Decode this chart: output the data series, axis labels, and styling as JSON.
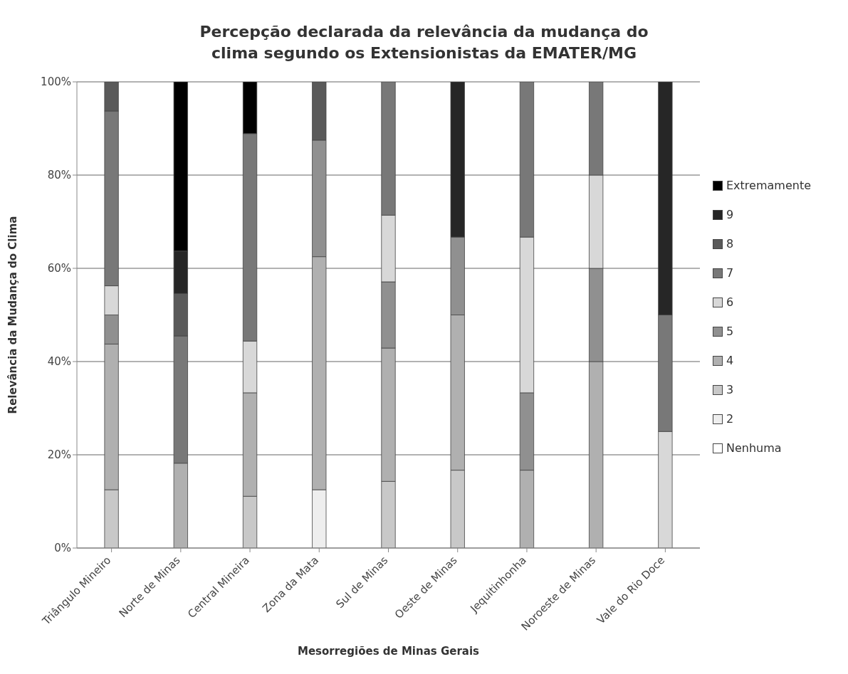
{
  "chart_data": {
    "type": "bar",
    "stacked": true,
    "title": "Percepção declarada da relevância da mudança do clima segundo os Extensionistas da EMATER/MG",
    "xlabel": "Mesorregiões de Minas Gerais",
    "ylabel": "Relevância da Mudança do Clima",
    "categories": [
      "Triângulo Mineiro",
      "Norte de Minas",
      "Central Mineira",
      "Zona da Mata",
      "Sul de Minas",
      "Oeste de Minas",
      "Jequitinhonha",
      "Noroeste de Minas",
      "Vale do Rio Doce"
    ],
    "ylim": [
      0,
      100
    ],
    "yticks": [
      {
        "value": 0,
        "label": "0%"
      },
      {
        "value": 20,
        "label": "20%"
      },
      {
        "value": 40,
        "label": "40%"
      },
      {
        "value": 60,
        "label": "60%"
      },
      {
        "value": 80,
        "label": "80%"
      },
      {
        "value": 100,
        "label": "100%"
      }
    ],
    "grid": "y",
    "legend": "right",
    "series": [
      {
        "name": "Nenhuma",
        "color": "#ffffff",
        "values": [
          0,
          0,
          0,
          0,
          0,
          0,
          0,
          0,
          0
        ]
      },
      {
        "name": "2",
        "color": "#eeeeee",
        "values": [
          0,
          0,
          0,
          12.5,
          0,
          0,
          0,
          0,
          0
        ]
      },
      {
        "name": "3",
        "color": "#c8c8c8",
        "values": [
          12.5,
          0,
          11.1,
          0,
          14.3,
          16.7,
          0,
          0,
          0
        ]
      },
      {
        "name": "4",
        "color": "#b0b0b0",
        "values": [
          31.25,
          18.2,
          22.2,
          50,
          28.6,
          33.3,
          16.7,
          40,
          0
        ]
      },
      {
        "name": "5",
        "color": "#909090",
        "values": [
          6.25,
          0,
          0,
          25,
          14.2,
          16.7,
          16.6,
          20,
          0
        ]
      },
      {
        "name": "6",
        "color": "#d8d8d8",
        "values": [
          6.25,
          0,
          11.1,
          0,
          14.3,
          0,
          33.4,
          20,
          25
        ]
      },
      {
        "name": "7",
        "color": "#787878",
        "values": [
          37.5,
          27.3,
          44.5,
          0,
          28.6,
          0,
          33.3,
          20,
          25
        ]
      },
      {
        "name": "8",
        "color": "#5a5a5a",
        "values": [
          6.25,
          9.1,
          0,
          12.5,
          0,
          0,
          0,
          0,
          0
        ]
      },
      {
        "name": "9",
        "color": "#262626",
        "values": [
          0,
          9.1,
          0,
          0,
          0,
          33.3,
          0,
          0,
          50
        ]
      },
      {
        "name": "Extremamente",
        "color": "#000000",
        "values": [
          0,
          36.3,
          11.1,
          0,
          0,
          0,
          0,
          0,
          0
        ]
      }
    ]
  }
}
